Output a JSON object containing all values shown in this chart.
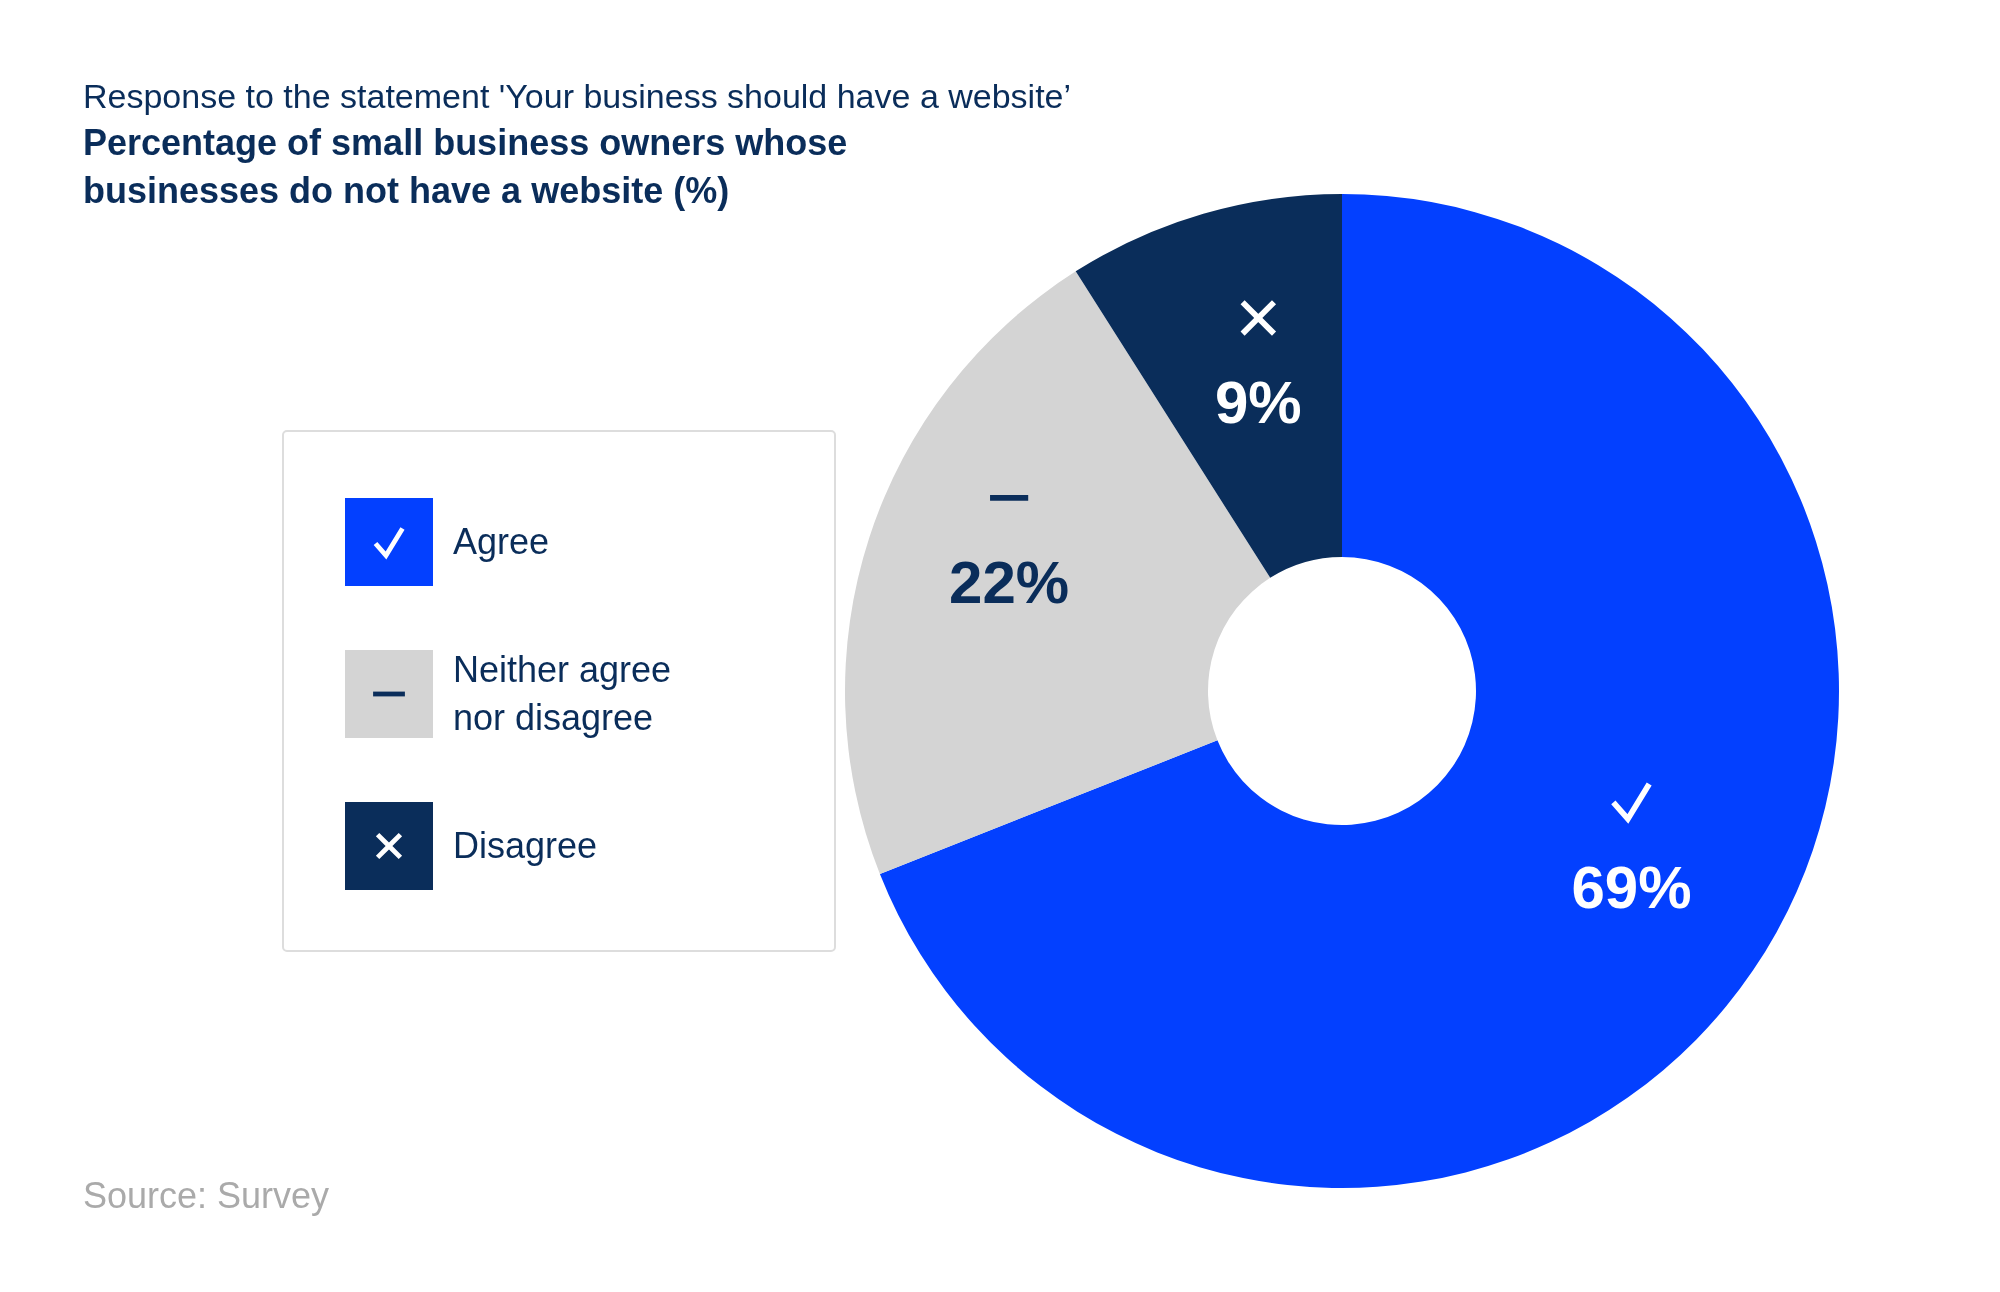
{
  "chart_data": {
    "type": "donut",
    "subtitle": "Response to the statement 'Your business should have a website’",
    "title": "Percentage of small business owners whose businesses do not have a website (%)",
    "categories": [
      "Agree",
      "Neither agree nor disagree",
      "Disagree"
    ],
    "values": [
      69,
      22,
      9
    ],
    "colors": [
      "#0340ff",
      "#d4d4d4",
      "#0a2d5a"
    ],
    "value_labels": [
      "69%",
      "22%",
      "9%"
    ],
    "legend": "left",
    "annotations": [
      "Source: Survey"
    ]
  }
}
